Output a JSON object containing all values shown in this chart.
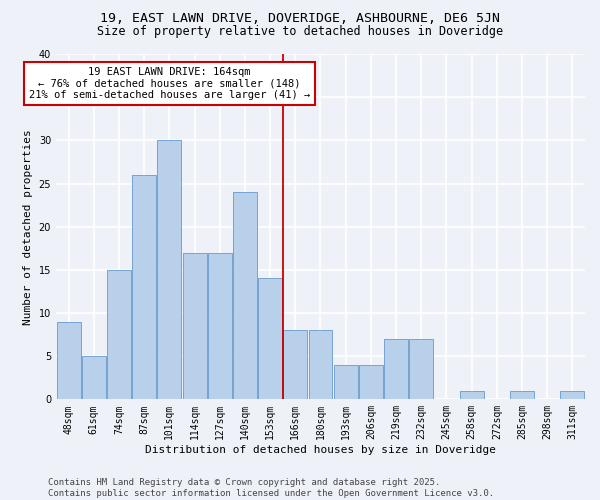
{
  "title1": "19, EAST LAWN DRIVE, DOVERIDGE, ASHBOURNE, DE6 5JN",
  "title2": "Size of property relative to detached houses in Doveridge",
  "xlabel": "Distribution of detached houses by size in Doveridge",
  "ylabel": "Number of detached properties",
  "bar_labels": [
    "48sqm",
    "61sqm",
    "74sqm",
    "87sqm",
    "101sqm",
    "114sqm",
    "127sqm",
    "140sqm",
    "153sqm",
    "166sqm",
    "180sqm",
    "193sqm",
    "206sqm",
    "219sqm",
    "232sqm",
    "245sqm",
    "258sqm",
    "272sqm",
    "285sqm",
    "298sqm",
    "311sqm"
  ],
  "bar_values": [
    9,
    5,
    15,
    26,
    30,
    17,
    17,
    24,
    14,
    8,
    8,
    4,
    4,
    7,
    7,
    0,
    1,
    0,
    1,
    0,
    1
  ],
  "bar_color": "#b8d0ea",
  "bar_edge_color": "#6699cc",
  "vline_color": "#cc0000",
  "annotation_text": "19 EAST LAWN DRIVE: 164sqm\n← 76% of detached houses are smaller (148)\n21% of semi-detached houses are larger (41) →",
  "annotation_box_color": "#ffffff",
  "annotation_box_edge": "#cc0000",
  "ylim": [
    0,
    40
  ],
  "yticks": [
    0,
    5,
    10,
    15,
    20,
    25,
    30,
    35,
    40
  ],
  "bg_color": "#eef2f8",
  "grid_color": "#ffffff",
  "footer": "Contains HM Land Registry data © Crown copyright and database right 2025.\nContains public sector information licensed under the Open Government Licence v3.0.",
  "title_fontsize": 9.5,
  "subtitle_fontsize": 8.5,
  "axis_label_fontsize": 8,
  "tick_fontsize": 7,
  "annotation_fontsize": 7.5,
  "footer_fontsize": 6.5
}
